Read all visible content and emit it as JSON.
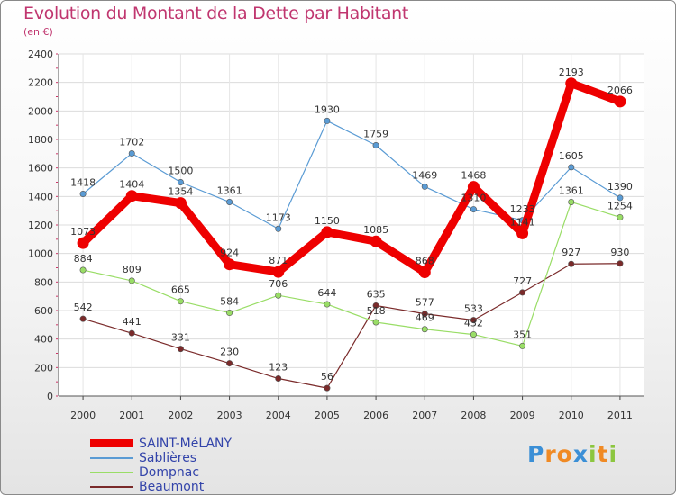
{
  "chart_data": {
    "type": "line",
    "title": "Evolution du Montant de la Dette par Habitant",
    "subtitle": "(en €)",
    "x": [
      "2000",
      "2001",
      "2002",
      "2003",
      "2004",
      "2005",
      "2006",
      "2007",
      "2008",
      "2009",
      "2010",
      "2011"
    ],
    "ylim": [
      0,
      2400
    ],
    "yticks": [
      0,
      200,
      400,
      600,
      800,
      1000,
      1200,
      1400,
      1600,
      1800,
      2000,
      2200,
      2400
    ],
    "grid": true,
    "legend_position": "bottom-left",
    "series": [
      {
        "name": "SAINT-MéLANY",
        "color": "#ee0000",
        "values": [
          1073,
          1404,
          1354,
          924,
          871,
          1150,
          1085,
          868,
          1468,
          1141,
          2193,
          2066
        ]
      },
      {
        "name": "Sablières",
        "color": "#5a9bd4",
        "values": [
          1418,
          1702,
          1500,
          1361,
          1173,
          1930,
          1759,
          1469,
          1310,
          1233,
          1605,
          1390
        ]
      },
      {
        "name": "Dompnac",
        "color": "#99dd66",
        "values": [
          884,
          809,
          665,
          584,
          706,
          644,
          518,
          469,
          432,
          351,
          1361,
          1254
        ]
      },
      {
        "name": "Beaumont",
        "color": "#7a2a2a",
        "values": [
          542,
          441,
          331,
          230,
          123,
          56,
          635,
          577,
          533,
          727,
          927,
          930
        ]
      }
    ]
  },
  "legend_colors": {
    "SAINT-MéLANY": "#3344aa",
    "Sablières": "#3344aa",
    "Dompnac": "#3344aa",
    "Beaumont": "#3344aa"
  },
  "logo": {
    "letters": [
      "P",
      "r",
      "o",
      "x",
      "i",
      "t",
      "i"
    ],
    "colors": [
      "#3b8fd6",
      "#f08a24",
      "#f08a24",
      "#3b8fd6",
      "#8cc63f",
      "#f08a24",
      "#8cc63f"
    ]
  }
}
